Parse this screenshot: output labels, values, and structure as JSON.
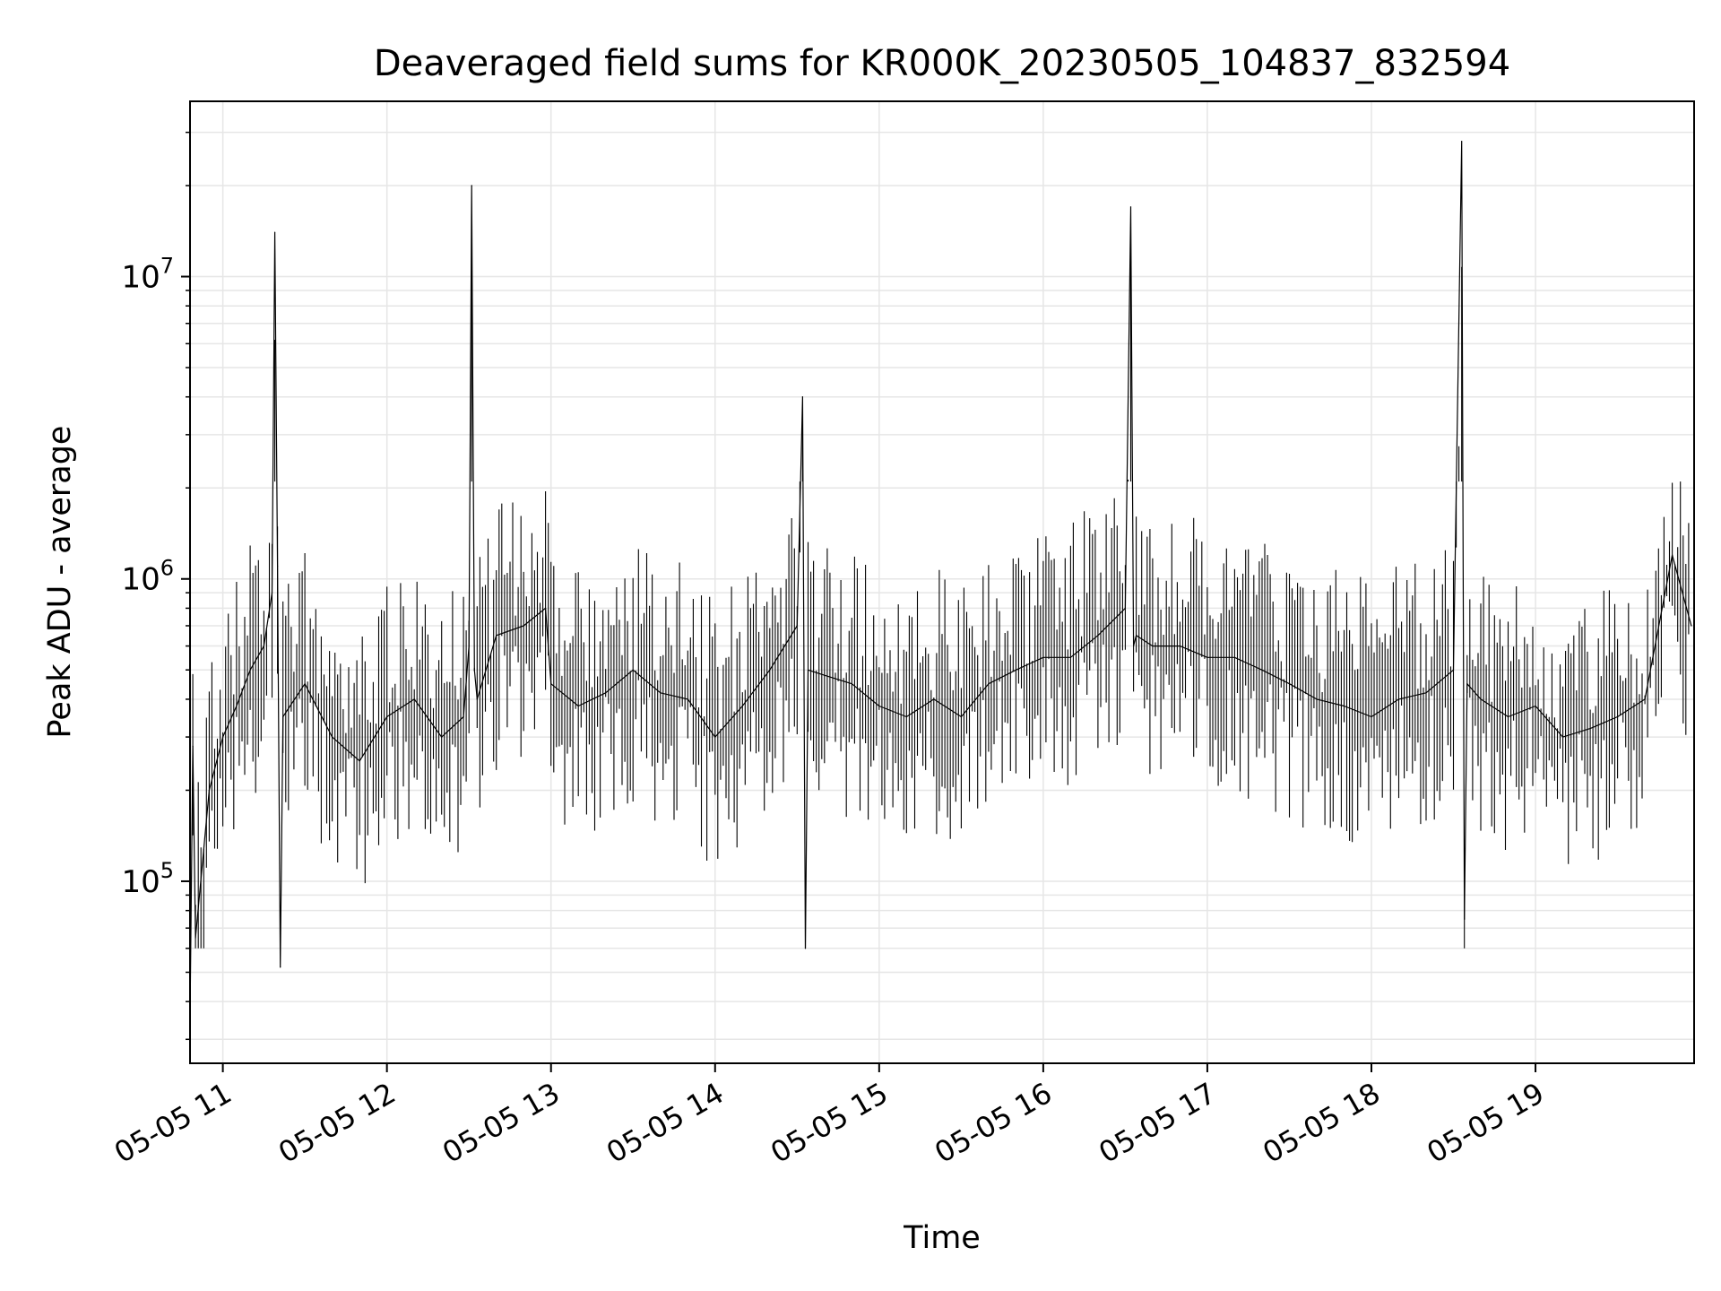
{
  "chart_data": {
    "type": "line",
    "title": "Deaveraged field sums for KR000K_20230505_104837_832594",
    "xlabel": "Time",
    "ylabel": "Peak ADU - average",
    "y_scale": "log",
    "xlim": [
      "2023-05-05T10:48",
      "2023-05-05T19:58"
    ],
    "ylim": [
      25000,
      38000000
    ],
    "x_ticks": [
      {
        "value": "2023-05-05T11:00",
        "label": "05-05 11"
      },
      {
        "value": "2023-05-05T12:00",
        "label": "05-05 12"
      },
      {
        "value": "2023-05-05T13:00",
        "label": "05-05 13"
      },
      {
        "value": "2023-05-05T14:00",
        "label": "05-05 14"
      },
      {
        "value": "2023-05-05T15:00",
        "label": "05-05 15"
      },
      {
        "value": "2023-05-05T16:00",
        "label": "05-05 16"
      },
      {
        "value": "2023-05-05T17:00",
        "label": "05-05 17"
      },
      {
        "value": "2023-05-05T18:00",
        "label": "05-05 18"
      },
      {
        "value": "2023-05-05T19:00",
        "label": "05-05 19"
      }
    ],
    "y_ticks": [
      {
        "value": 100000,
        "base": "10",
        "exp": "5"
      },
      {
        "value": 1000000,
        "base": "10",
        "exp": "6"
      },
      {
        "value": 10000000,
        "base": "10",
        "exp": "7"
      }
    ],
    "grid": true,
    "line_color": "#000000",
    "series": [
      {
        "x": [
          "2023-05-05T10:48",
          "2023-05-05T10:49",
          "2023-05-05T10:50",
          "2023-05-05T10:55",
          "2023-05-05T11:00",
          "2023-05-05T11:05",
          "2023-05-05T11:10",
          "2023-05-05T11:15",
          "2023-05-05T11:18",
          "2023-05-05T11:19",
          "2023-05-05T11:20",
          "2023-05-05T11:21",
          "2023-05-05T11:22",
          "2023-05-05T11:30",
          "2023-05-05T11:40",
          "2023-05-05T11:50",
          "2023-05-05T12:00",
          "2023-05-05T12:10",
          "2023-05-05T12:20",
          "2023-05-05T12:28",
          "2023-05-05T12:30",
          "2023-05-05T12:31",
          "2023-05-05T12:32",
          "2023-05-05T12:33",
          "2023-05-05T12:40",
          "2023-05-05T12:50",
          "2023-05-05T12:58",
          "2023-05-05T13:00",
          "2023-05-05T13:10",
          "2023-05-05T13:20",
          "2023-05-05T13:30",
          "2023-05-05T13:40",
          "2023-05-05T13:50",
          "2023-05-05T14:00",
          "2023-05-05T14:10",
          "2023-05-05T14:20",
          "2023-05-05T14:30",
          "2023-05-05T14:32",
          "2023-05-05T14:33",
          "2023-05-05T14:34",
          "2023-05-05T14:40",
          "2023-05-05T14:50",
          "2023-05-05T15:00",
          "2023-05-05T15:10",
          "2023-05-05T15:20",
          "2023-05-05T15:30",
          "2023-05-05T15:40",
          "2023-05-05T15:50",
          "2023-05-05T16:00",
          "2023-05-05T16:10",
          "2023-05-05T16:20",
          "2023-05-05T16:30",
          "2023-05-05T16:32",
          "2023-05-05T16:33",
          "2023-05-05T16:34",
          "2023-05-05T16:40",
          "2023-05-05T16:50",
          "2023-05-05T17:00",
          "2023-05-05T17:10",
          "2023-05-05T17:20",
          "2023-05-05T17:30",
          "2023-05-05T17:40",
          "2023-05-05T17:50",
          "2023-05-05T18:00",
          "2023-05-05T18:10",
          "2023-05-05T18:20",
          "2023-05-05T18:30",
          "2023-05-05T18:33",
          "2023-05-05T18:34",
          "2023-05-05T18:35",
          "2023-05-05T18:40",
          "2023-05-05T18:50",
          "2023-05-05T19:00",
          "2023-05-05T19:10",
          "2023-05-05T19:20",
          "2023-05-05T19:30",
          "2023-05-05T19:40",
          "2023-05-05T19:50",
          "2023-05-05T19:57"
        ],
        "y": [
          35000,
          280000,
          65000,
          200000,
          300000,
          380000,
          500000,
          600000,
          900000,
          14000000,
          1100000,
          52000,
          350000,
          450000,
          300000,
          250000,
          350000,
          400000,
          300000,
          350000,
          600000,
          20000000,
          500000,
          400000,
          650000,
          700000,
          800000,
          450000,
          380000,
          420000,
          500000,
          420000,
          400000,
          300000,
          380000,
          500000,
          700000,
          4000000,
          60000,
          500000,
          480000,
          450000,
          380000,
          350000,
          400000,
          350000,
          450000,
          500000,
          550000,
          550000,
          650000,
          800000,
          17000000,
          600000,
          650000,
          600000,
          600000,
          550000,
          550000,
          500000,
          450000,
          400000,
          380000,
          350000,
          400000,
          420000,
          500000,
          28000000,
          75000,
          450000,
          400000,
          350000,
          380000,
          300000,
          320000,
          350000,
          400000,
          1200000,
          700000
        ]
      }
    ]
  }
}
